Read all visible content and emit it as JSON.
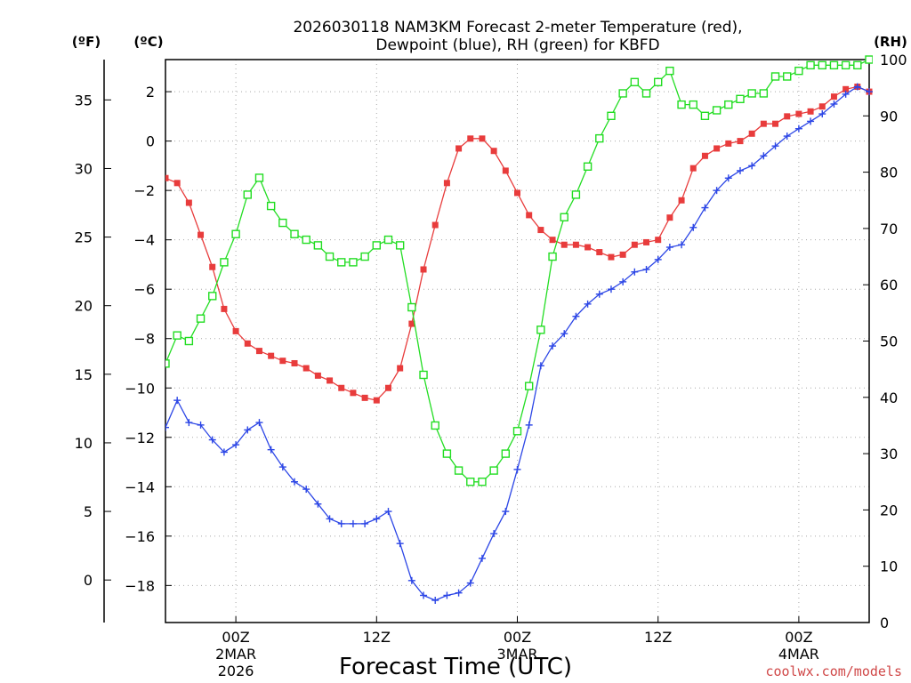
{
  "chart_data": {
    "type": "line",
    "title_line1": "2026030118 NAM3KM Forecast 2-meter Temperature (red),",
    "title_line2": "Dewpoint (blue), RH (green) for KBFD",
    "xlabel": "Forecast Time (UTC)",
    "credit": "coolwx.com/models",
    "units": {
      "fahrenheit": "(ºF)",
      "celsius": "(ºC)",
      "rh": "(RH)"
    },
    "x_range_hours": [
      0,
      60
    ],
    "c_range": [
      -19.5,
      3.3
    ],
    "f_ticks": [
      0,
      5,
      10,
      15,
      20,
      25,
      30,
      35
    ],
    "c_ticks": [
      -18,
      -16,
      -14,
      -12,
      -10,
      -8,
      -6,
      -4,
      -2,
      0,
      2
    ],
    "c_tick_labels": [
      "−18",
      "−16",
      "−14",
      "−12",
      "−10",
      "−8",
      "−6",
      "−4",
      "−2",
      "0",
      "2"
    ],
    "rh_ticks": [
      0,
      10,
      20,
      30,
      40,
      50,
      60,
      70,
      80,
      90,
      100
    ],
    "x_ticks": [
      {
        "hour": 6,
        "label": "00Z",
        "date1": "2MAR",
        "date2": "2026"
      },
      {
        "hour": 18,
        "label": "12Z",
        "date1": "",
        "date2": ""
      },
      {
        "hour": 30,
        "label": "00Z",
        "date1": "3MAR",
        "date2": ""
      },
      {
        "hour": 42,
        "label": "12Z",
        "date1": "",
        "date2": ""
      },
      {
        "hour": 54,
        "label": "00Z",
        "date1": "4MAR",
        "date2": ""
      }
    ],
    "series": [
      {
        "name": "2-meter Temperature",
        "units": "C",
        "color": "#e83c3c",
        "marker": "filled-square",
        "values": [
          -1.5,
          -1.7,
          -2.5,
          -3.8,
          -5.1,
          -6.8,
          -7.7,
          -8.2,
          -8.5,
          -8.7,
          -8.9,
          -9.0,
          -9.2,
          -9.5,
          -9.7,
          -10.0,
          -10.2,
          -10.4,
          -10.5,
          -10.0,
          -9.2,
          -7.4,
          -5.2,
          -3.4,
          -1.7,
          -0.3,
          0.1,
          0.1,
          -0.4,
          -1.2,
          -2.1,
          -3.0,
          -3.6,
          -4.0,
          -4.2,
          -4.2,
          -4.3,
          -4.5,
          -4.7,
          -4.6,
          -4.2,
          -4.1,
          -4.0,
          -3.1,
          -2.4,
          -1.1,
          -0.6,
          -0.3,
          -0.1,
          0.0,
          0.3,
          0.7,
          0.7,
          1.0,
          1.1,
          1.2,
          1.4,
          1.8,
          2.1,
          2.2,
          2.0
        ]
      },
      {
        "name": "Dewpoint",
        "units": "C",
        "color": "#2c46e6",
        "marker": "plus",
        "values": [
          -11.6,
          -10.5,
          -11.4,
          -11.5,
          -12.1,
          -12.6,
          -12.3,
          -11.7,
          -11.4,
          -12.5,
          -13.2,
          -13.8,
          -14.1,
          -14.7,
          -15.3,
          -15.5,
          -15.5,
          -15.5,
          -15.3,
          -15.0,
          -16.3,
          -17.8,
          -18.4,
          -18.6,
          -18.4,
          -18.3,
          -17.9,
          -16.9,
          -15.9,
          -15.0,
          -13.3,
          -11.5,
          -9.1,
          -8.3,
          -7.8,
          -7.1,
          -6.6,
          -6.2,
          -6.0,
          -5.7,
          -5.3,
          -5.2,
          -4.8,
          -4.3,
          -4.2,
          -3.5,
          -2.7,
          -2.0,
          -1.5,
          -1.2,
          -1.0,
          -0.6,
          -0.2,
          0.2,
          0.5,
          0.8,
          1.1,
          1.5,
          1.9,
          2.2,
          2.0
        ]
      },
      {
        "name": "RH",
        "units": "%",
        "color": "#22dd22",
        "marker": "open-square",
        "values": [
          46,
          51,
          50,
          54,
          58,
          64,
          69,
          76,
          79,
          74,
          71,
          69,
          68,
          67,
          65,
          64,
          64,
          65,
          67,
          68,
          67,
          56,
          44,
          35,
          30,
          27,
          25,
          25,
          27,
          30,
          34,
          42,
          52,
          65,
          72,
          76,
          81,
          86,
          90,
          94,
          96,
          94,
          96,
          98,
          92,
          92,
          90,
          91,
          92,
          93,
          94,
          94,
          97,
          97,
          98,
          99,
          99,
          99,
          99,
          99,
          100
        ]
      }
    ]
  }
}
